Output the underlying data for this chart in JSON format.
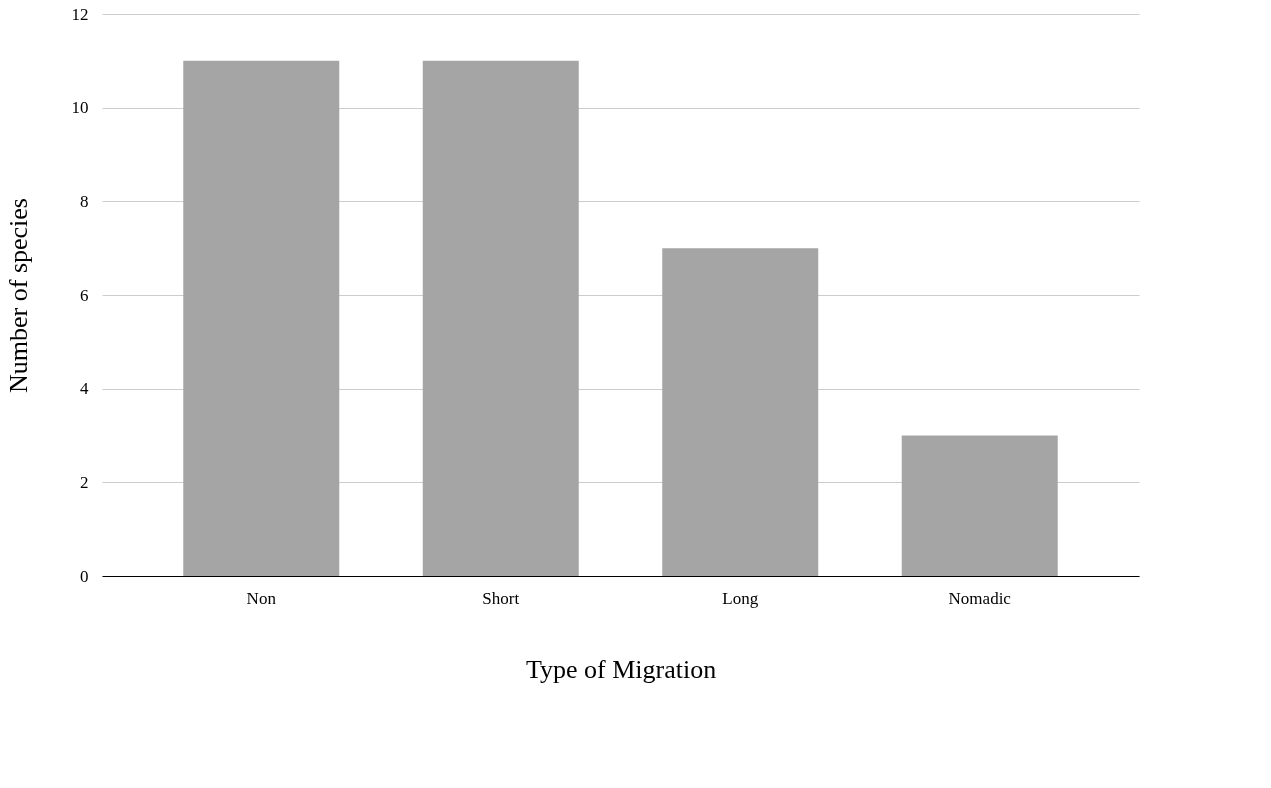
{
  "chart_data": {
    "type": "bar",
    "xlabel": "Type of Migration",
    "ylabel": "Number of species",
    "categories": [
      "Non",
      "Short",
      "Long",
      "Nomadic"
    ],
    "values": [
      11,
      11,
      7,
      3
    ],
    "color": "#a5a5a5",
    "ylim": [
      0,
      12
    ],
    "yticks": [
      0,
      2,
      4,
      6,
      8,
      10,
      12
    ],
    "grid": "y"
  }
}
